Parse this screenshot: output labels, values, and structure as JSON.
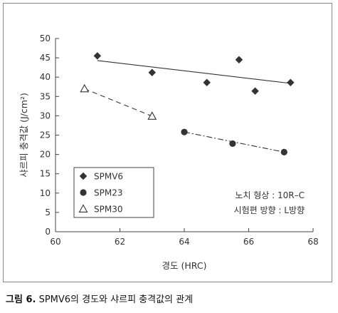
{
  "chart_data": {
    "type": "scatter",
    "xlabel": "경도 (HRC)",
    "ylabel": "샤르피 충격값 (J/cm²)",
    "xlim": [
      60,
      68
    ],
    "ylim": [
      0,
      50
    ],
    "x_ticks": [
      60,
      62,
      64,
      66,
      68
    ],
    "y_ticks": [
      0,
      5,
      10,
      15,
      20,
      25,
      30,
      35,
      40,
      45,
      50
    ],
    "grid": false,
    "legend_position": "bottom-left",
    "series": [
      {
        "name": "SPMV6",
        "marker": "diamond",
        "line_style": "solid",
        "points": [
          [
            61.3,
            45.5
          ],
          [
            63.0,
            41.2
          ],
          [
            64.7,
            38.6
          ],
          [
            65.7,
            44.5
          ],
          [
            66.2,
            36.4
          ],
          [
            67.3,
            38.6
          ]
        ],
        "trend": [
          [
            61.3,
            44.3
          ],
          [
            67.3,
            38.4
          ]
        ]
      },
      {
        "name": "SPM23",
        "marker": "circle",
        "line_style": "dashdot",
        "points": [
          [
            64.0,
            25.8
          ],
          [
            65.5,
            22.8
          ],
          [
            67.1,
            20.6
          ]
        ],
        "trend": [
          [
            64.0,
            25.8
          ],
          [
            67.1,
            20.6
          ]
        ]
      },
      {
        "name": "SPM30",
        "marker": "triangle",
        "line_style": "dashed",
        "points": [
          [
            60.9,
            37.0
          ],
          [
            63.0,
            29.9
          ]
        ],
        "trend": [
          [
            60.9,
            37.0
          ],
          [
            63.0,
            29.9
          ]
        ]
      }
    ],
    "annotations": [
      "노치 형상 : 10R–C",
      "시험편 방향 : L방향"
    ]
  },
  "caption": {
    "label": "그림 6.",
    "text": " SPMV6의 경도와 샤르피 충격값의 관계"
  }
}
